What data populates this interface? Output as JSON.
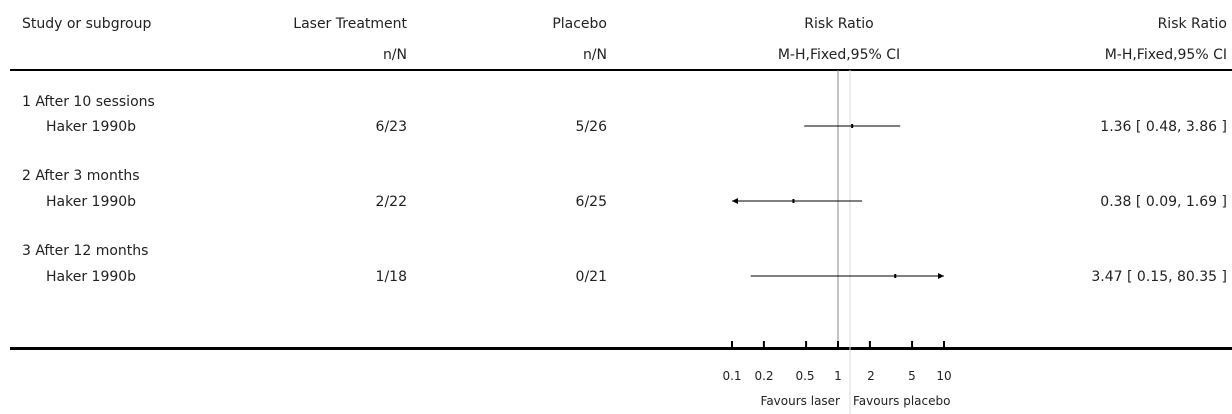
{
  "header": {
    "study_label": "Study or subgroup",
    "group1_label": "Laser Treatment",
    "group2_label": "Placebo",
    "plot_label": "Risk Ratio",
    "effect_label": "Risk Ratio",
    "group1_sub": "n/N",
    "group2_sub": "n/N",
    "plot_sub": "M-H,Fixed,95% CI",
    "effect_sub": "M-H,Fixed,95% CI"
  },
  "subgroups": [
    {
      "title": "1 After 10 sessions",
      "study": "Haker 1990b",
      "g1": "6/23",
      "g2": "5/26",
      "effect": "1.36 [ 0.48, 3.86 ]"
    },
    {
      "title": "2 After 3 months",
      "study": "Haker 1990b",
      "g1": "2/22",
      "g2": "6/25",
      "effect": "0.38 [ 0.09, 1.69 ]"
    },
    {
      "title": "3 After 12 months",
      "study": "Haker 1990b",
      "g1": "1/18",
      "g2": "0/21",
      "effect": "3.47 [ 0.15, 80.35 ]"
    }
  ],
  "axis": {
    "ticks": [
      "0.1",
      "0.2",
      "0.5",
      "1",
      "2",
      "5",
      "10"
    ],
    "favours_left": "Favours laser",
    "favours_right": "Favours placebo"
  },
  "chart_data": {
    "type": "forest",
    "scale": "log",
    "xlim": [
      0.1,
      10
    ],
    "null_line": 1,
    "x_ticks": [
      0.1,
      0.2,
      0.5,
      1,
      2,
      5,
      10
    ],
    "studies": [
      {
        "subgroup": "1 After 10 sessions",
        "name": "Haker 1990b",
        "rr": 1.36,
        "ci": [
          0.48,
          3.86
        ]
      },
      {
        "subgroup": "2 After 3 months",
        "name": "Haker 1990b",
        "rr": 0.38,
        "ci": [
          0.09,
          1.69
        ]
      },
      {
        "subgroup": "3 After 12 months",
        "name": "Haker 1990b",
        "rr": 3.47,
        "ci": [
          0.15,
          80.35
        ]
      }
    ],
    "colors": {
      "line": "#000000",
      "null_line": "#888888"
    }
  }
}
